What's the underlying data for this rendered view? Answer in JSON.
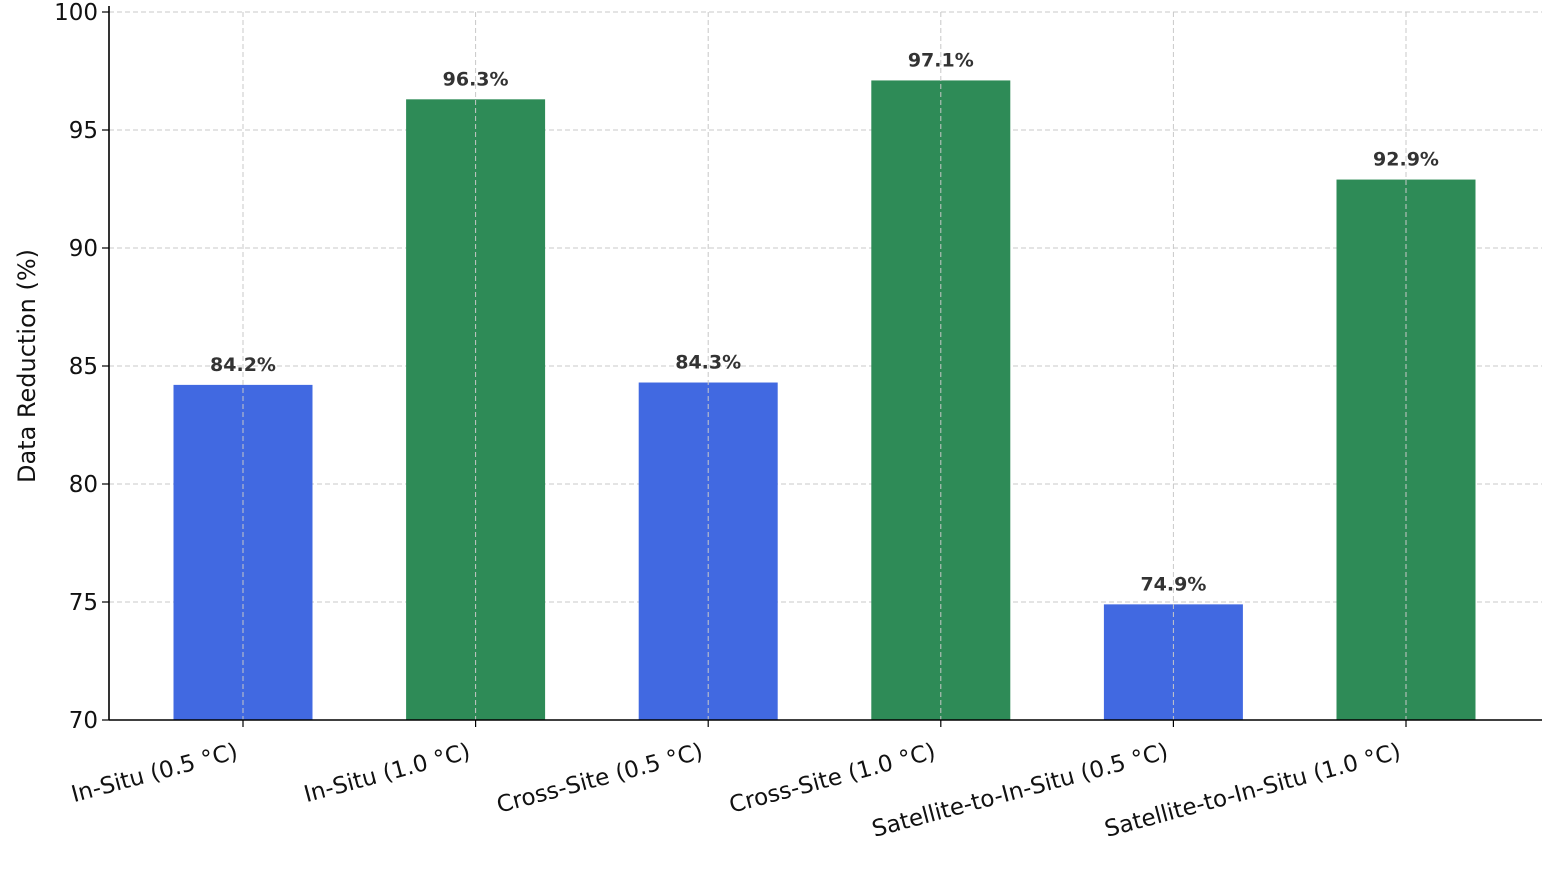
{
  "chart_data": {
    "type": "bar",
    "title": "",
    "xlabel": "",
    "ylabel": "Data Reduction (%)",
    "ylim": [
      70,
      100
    ],
    "yticks": [
      70,
      75,
      80,
      85,
      90,
      95,
      100
    ],
    "grid": true,
    "categories": [
      "In-Situ (0.5 °C)",
      "In-Situ (1.0 °C)",
      "Cross-Site (0.5 °C)",
      "Cross-Site (1.0 °C)",
      "Satellite-to-In-Situ (0.5 °C)",
      "Satellite-to-In-Situ (1.0 °C)"
    ],
    "values": [
      84.2,
      96.3,
      84.3,
      97.1,
      74.9,
      92.9
    ],
    "data_labels": [
      "84.2%",
      "96.3%",
      "84.3%",
      "97.1%",
      "74.9%",
      "92.9%"
    ],
    "bar_colors": [
      "#4169E1",
      "#2E8B57",
      "#4169E1",
      "#2E8B57",
      "#4169E1",
      "#2E8B57"
    ]
  }
}
